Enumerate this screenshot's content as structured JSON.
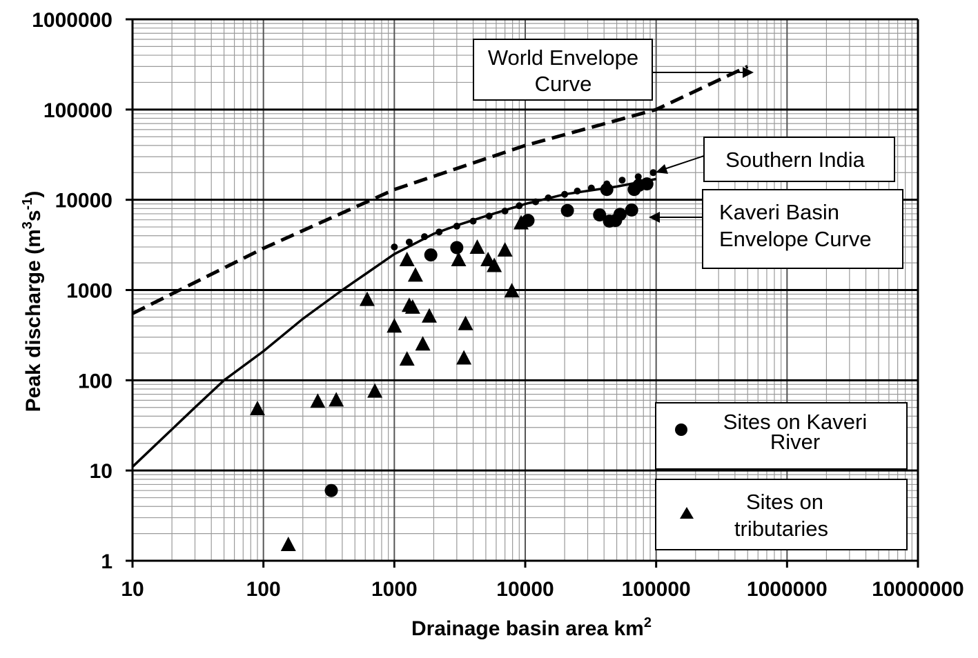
{
  "chart_data": {
    "type": "scatter",
    "xlabel": "Drainage basin area km",
    "xlabel_sup": "2",
    "ylabel_parts": [
      "Peak discharge (m",
      "3",
      "s",
      "-1",
      ")"
    ],
    "x_scale": "log",
    "y_scale": "log",
    "xlim": [
      10,
      10000000
    ],
    "ylim": [
      1,
      1000000
    ],
    "x_ticks": [
      "10",
      "100",
      "1000",
      "10000",
      "100000",
      "1000000",
      "10000000"
    ],
    "y_ticks": [
      "1",
      "10",
      "100",
      "1000",
      "10000",
      "100000",
      "1000000"
    ],
    "grid": true,
    "annotations": {
      "world": [
        "World Envelope",
        "Curve"
      ],
      "southern": [
        "Southern India"
      ],
      "kaveri": [
        "Kaveri Basin",
        "Envelope Curve"
      ]
    },
    "legend": {
      "position": "bottom-right",
      "kaveri_label": [
        "Sites on Kaveri",
        "River"
      ],
      "tributary_label": [
        "Sites on",
        "tributaries"
      ]
    },
    "world_envelope_curve": {
      "style": "dashed",
      "points": [
        [
          10,
          550
        ],
        [
          100,
          2900
        ],
        [
          1000,
          13000
        ],
        [
          10000,
          40000
        ],
        [
          100000,
          100000
        ],
        [
          500000,
          300000
        ]
      ]
    },
    "kaveri_basin_envelope_curve": {
      "style": "solid",
      "points": [
        [
          10,
          11
        ],
        [
          30,
          50
        ],
        [
          50,
          100
        ],
        [
          100,
          210
        ],
        [
          200,
          480
        ],
        [
          400,
          1000
        ],
        [
          600,
          1500
        ],
        [
          1000,
          2500
        ],
        [
          2000,
          4200
        ],
        [
          3000,
          5200
        ],
        [
          5000,
          6600
        ],
        [
          10000,
          9000
        ],
        [
          20000,
          11500
        ],
        [
          50000,
          14000
        ],
        [
          100000,
          17000
        ]
      ]
    },
    "southern_india_curve": {
      "style": "dotted",
      "points": [
        [
          1000,
          3000
        ],
        [
          1300,
          3400
        ],
        [
          1700,
          3900
        ],
        [
          2200,
          4400
        ],
        [
          3000,
          5100
        ],
        [
          4000,
          5800
        ],
        [
          5300,
          6600
        ],
        [
          7000,
          7500
        ],
        [
          9000,
          8600
        ],
        [
          12000,
          9500
        ],
        [
          15000,
          10500
        ],
        [
          20000,
          11500
        ],
        [
          25000,
          12500
        ],
        [
          32000,
          13500
        ],
        [
          42000,
          15000
        ],
        [
          55000,
          16500
        ],
        [
          73000,
          18000
        ],
        [
          95000,
          20000
        ]
      ]
    },
    "series": [
      {
        "name": "Sites on Kaveri River",
        "marker": "circle",
        "points": [
          [
            330,
            6
          ],
          [
            1900,
            2450
          ],
          [
            3000,
            2950
          ],
          [
            10500,
            5900
          ],
          [
            21000,
            7600
          ],
          [
            37000,
            6800
          ],
          [
            42000,
            13000
          ],
          [
            44000,
            5800
          ],
          [
            49000,
            5900
          ],
          [
            53000,
            6900
          ],
          [
            65000,
            7700
          ],
          [
            68000,
            13000
          ],
          [
            74000,
            14500
          ],
          [
            85000,
            15000
          ]
        ]
      },
      {
        "name": "Sites on tributaries",
        "marker": "triangle",
        "points": [
          [
            90,
            48
          ],
          [
            155,
            1.5
          ],
          [
            260,
            58
          ],
          [
            360,
            60
          ],
          [
            620,
            780
          ],
          [
            710,
            75
          ],
          [
            1000,
            395
          ],
          [
            1250,
            2150
          ],
          [
            1250,
            170
          ],
          [
            1300,
            670
          ],
          [
            1380,
            640
          ],
          [
            1450,
            1450
          ],
          [
            1650,
            250
          ],
          [
            1850,
            510
          ],
          [
            3100,
            2150
          ],
          [
            3400,
            175
          ],
          [
            3500,
            420
          ],
          [
            4300,
            2950
          ],
          [
            5200,
            2150
          ],
          [
            5800,
            1850
          ],
          [
            7000,
            2750
          ],
          [
            7900,
            970
          ],
          [
            9300,
            5500
          ]
        ]
      }
    ]
  }
}
